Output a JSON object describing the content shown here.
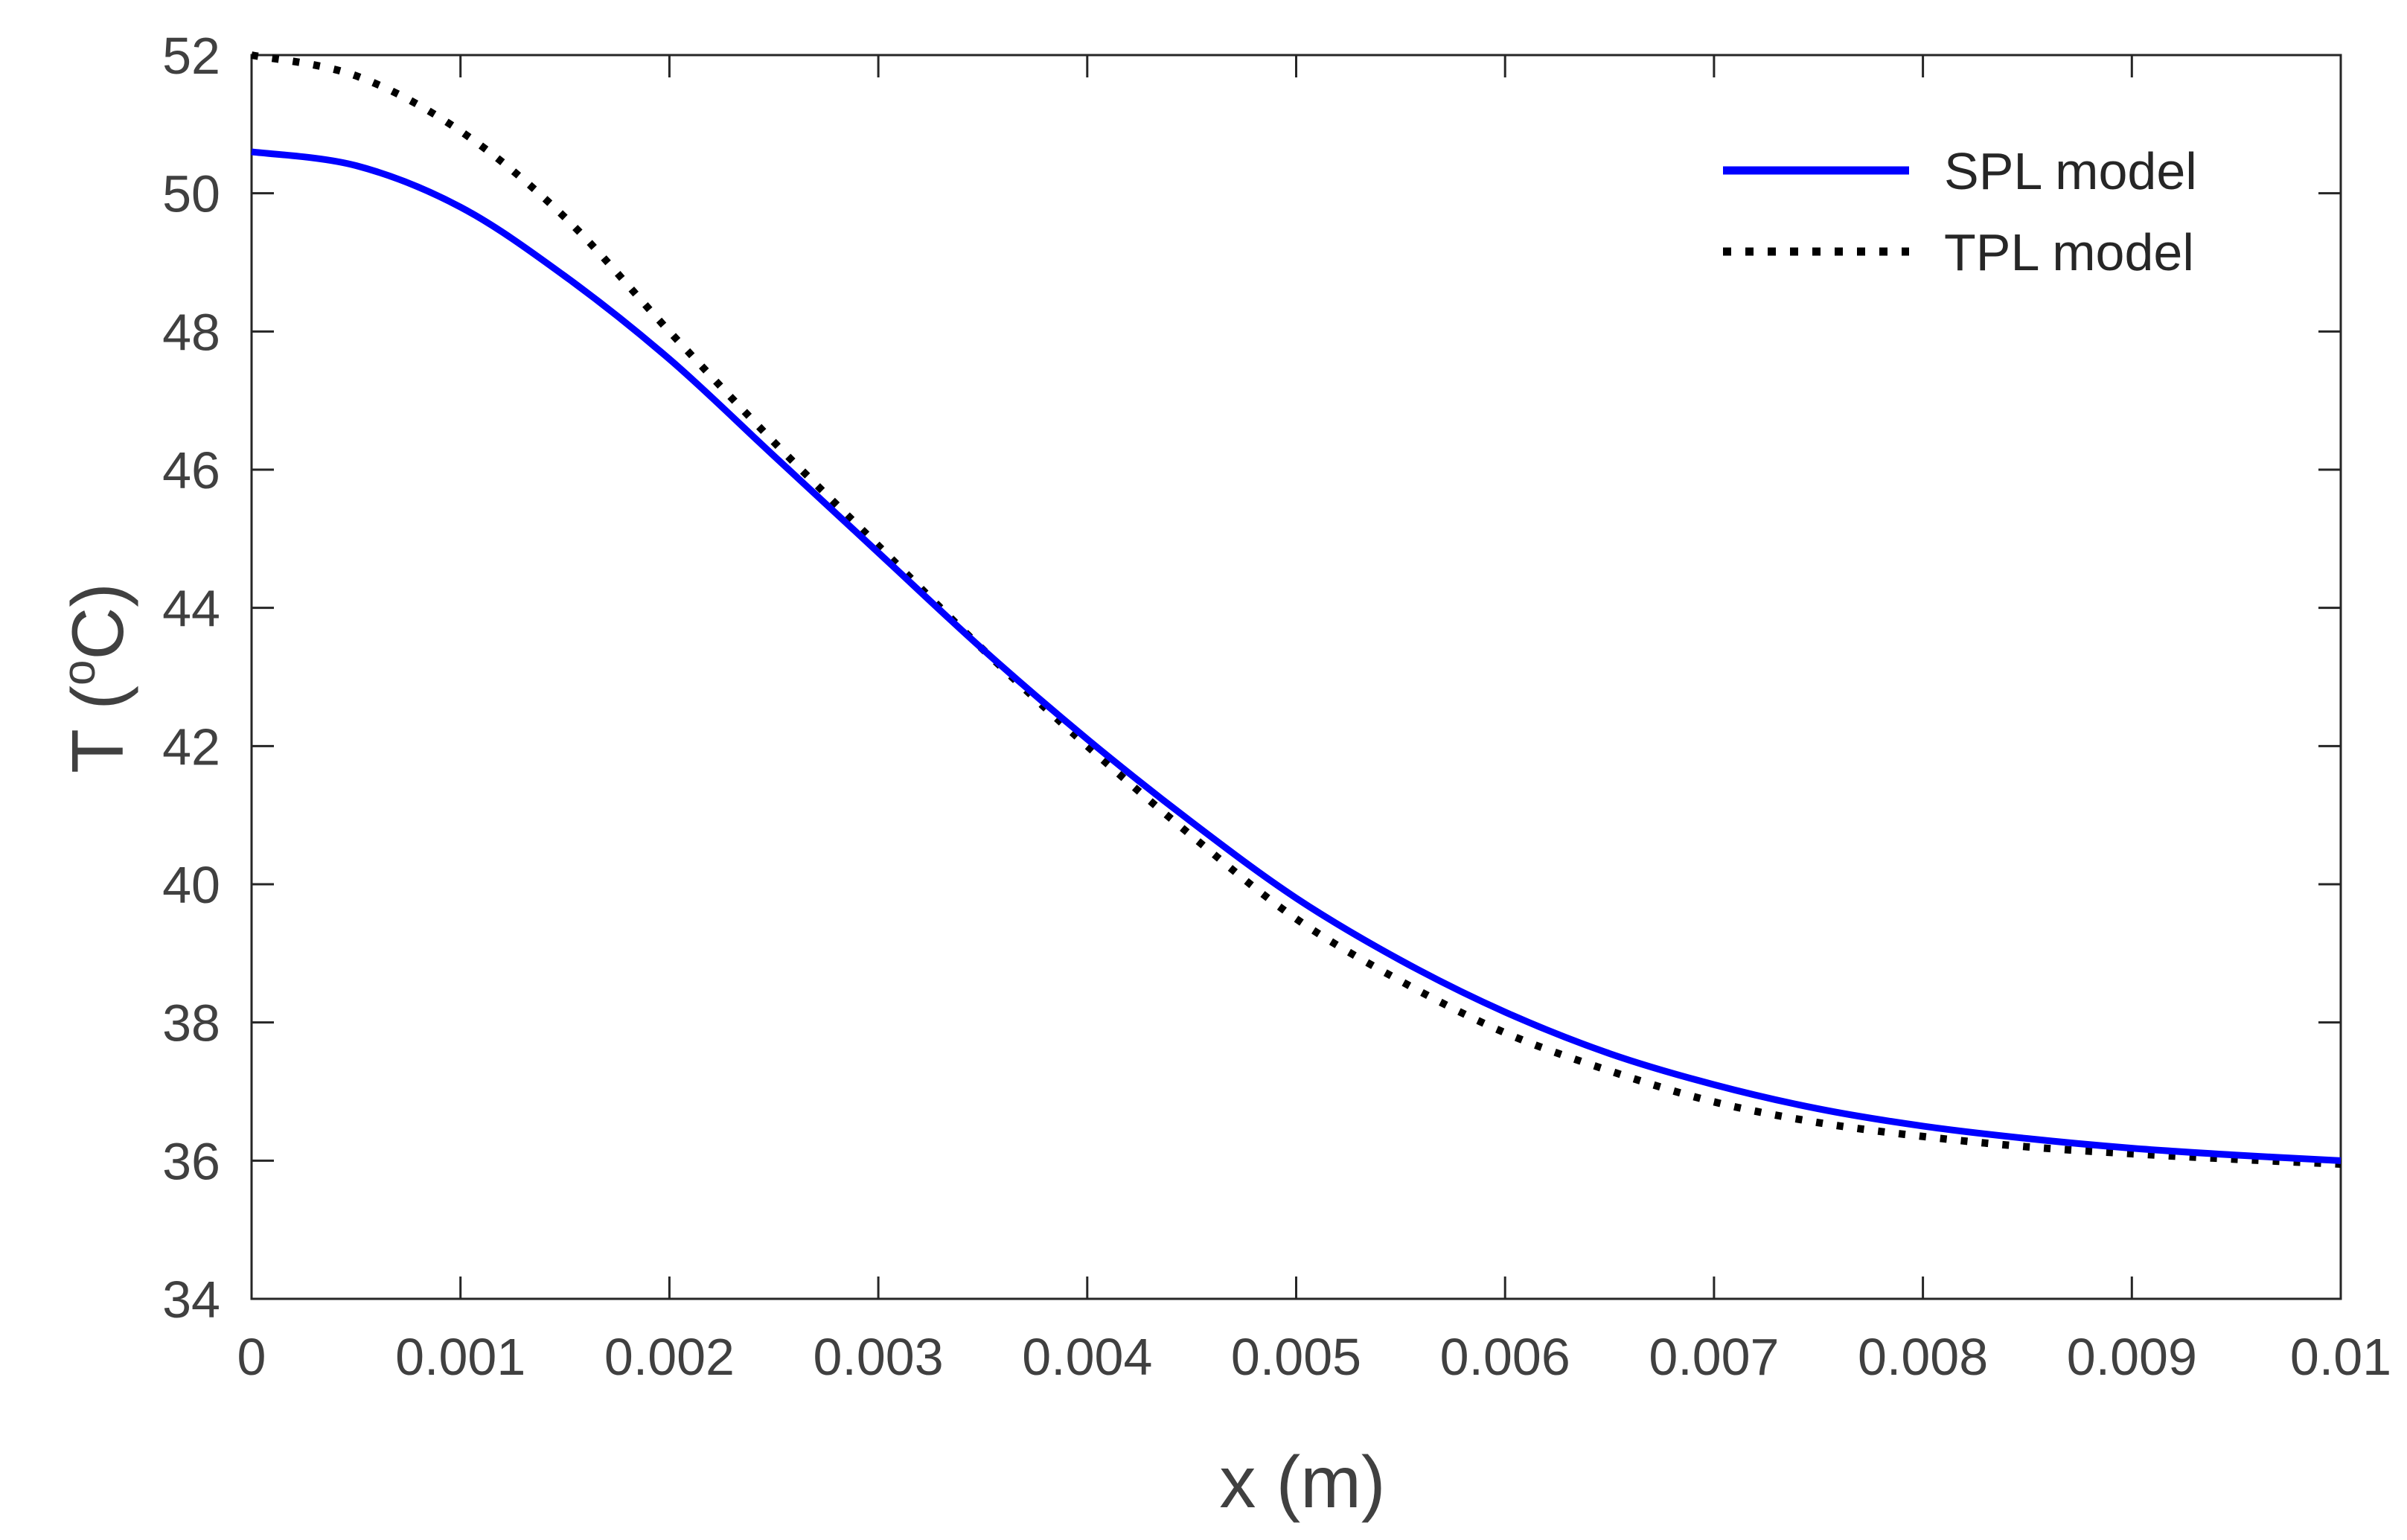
{
  "chart_data": {
    "type": "line",
    "title": "",
    "xlabel": "x (m)",
    "ylabel_prefix": "T (",
    "ylabel_degree": "o",
    "ylabel_suffix": "C)",
    "xlim": [
      0,
      0.01
    ],
    "ylim": [
      34,
      52
    ],
    "xticks": [
      0,
      0.001,
      0.002,
      0.003,
      0.004,
      0.005,
      0.006,
      0.007,
      0.008,
      0.009,
      0.01
    ],
    "xtick_labels": [
      "0",
      "0.001",
      "0.002",
      "0.003",
      "0.004",
      "0.005",
      "0.006",
      "0.007",
      "0.008",
      "0.009",
      "0.01"
    ],
    "yticks": [
      34,
      36,
      38,
      40,
      42,
      44,
      46,
      48,
      50,
      52
    ],
    "ytick_labels": [
      "34",
      "36",
      "38",
      "40",
      "42",
      "44",
      "46",
      "48",
      "50",
      "52"
    ],
    "grid": false,
    "legend_position": "top-right",
    "x": [
      0,
      0.0005,
      0.001,
      0.0015,
      0.002,
      0.0025,
      0.003,
      0.0035,
      0.004,
      0.0045,
      0.005,
      0.0055,
      0.006,
      0.0065,
      0.007,
      0.0075,
      0.008,
      0.0085,
      0.009,
      0.0095,
      0.01
    ],
    "series": [
      {
        "name": "SPL model",
        "color": "#0000ff",
        "style": "solid",
        "values": [
          50.6,
          50.4,
          49.8,
          48.8,
          47.6,
          46.2,
          44.8,
          43.4,
          42.1,
          40.9,
          39.8,
          38.9,
          38.15,
          37.55,
          37.1,
          36.75,
          36.5,
          36.32,
          36.18,
          36.08,
          36.0
        ]
      },
      {
        "name": "TPL model",
        "color": "#000000",
        "style": "dotted",
        "values": [
          52.0,
          51.7,
          50.9,
          49.65,
          48.0,
          46.4,
          44.9,
          43.4,
          42.0,
          40.7,
          39.5,
          38.6,
          37.85,
          37.3,
          36.85,
          36.55,
          36.35,
          36.2,
          36.1,
          36.02,
          35.95
        ]
      }
    ]
  }
}
